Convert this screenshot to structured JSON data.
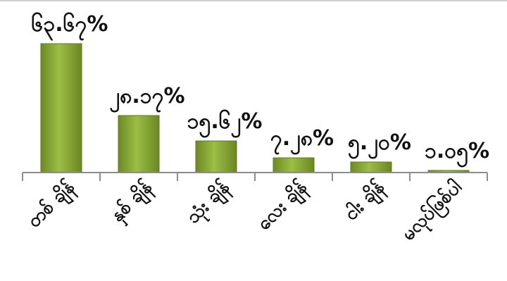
{
  "chart_data": {
    "type": "bar",
    "categories": [
      "တစ် ချိန်",
      "နှစ် ချိန်",
      "သုံး ချိန်",
      "လေး ချိန်",
      "ငါး ချိန်",
      "မလုပ်ဖြစ်ပါ"
    ],
    "values": [
      63.67,
      28.17,
      15.62,
      7.28,
      5.2,
      1.05
    ],
    "value_labels": [
      "၆၃.၆၇%",
      "၂၈.၁၇%",
      "၁၅.၆၂%",
      "၇.၂၈%",
      "၅.၂၀%",
      "၁.၀၅%"
    ],
    "ylim": [
      0,
      65
    ],
    "grid": false,
    "bar_color": "#7f9f2f",
    "bar_highlight": "#b5cf63",
    "axis_color": "#8c8c8c"
  }
}
